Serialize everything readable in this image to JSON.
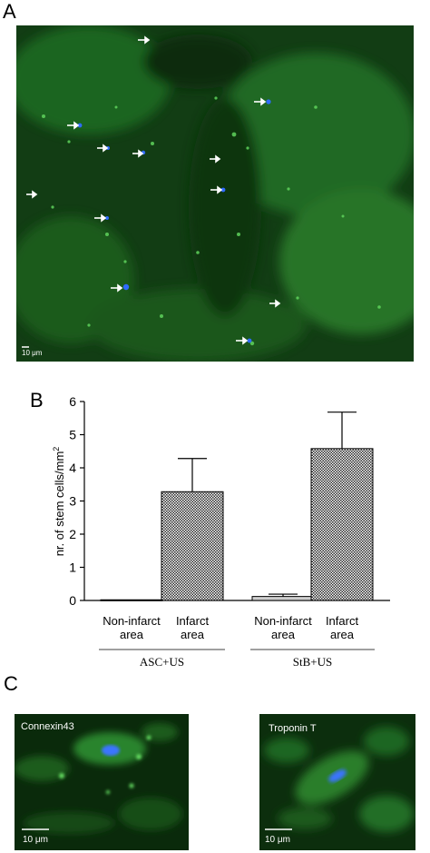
{
  "panels": {
    "a": "A",
    "b": "B",
    "c": "C"
  },
  "panel_a": {
    "scale_label": "10 μm"
  },
  "panel_c": {
    "left": {
      "title": "Connexin43",
      "scale_label": "10 μm"
    },
    "right": {
      "title": "Troponin T",
      "scale_label": "10 μm"
    }
  },
  "colors": {
    "fluor_green": "#1f8a1f",
    "nucleus_blue": "#2f6bff",
    "bar_fill": "#cfcfcf"
  },
  "chart_data": {
    "type": "bar",
    "ylabel": "nr. of stem cells/mm",
    "ylabel_superscript": "2",
    "ylim": [
      0,
      6
    ],
    "yticks": [
      0,
      1,
      2,
      3,
      4,
      5,
      6
    ],
    "groups": [
      {
        "name": "ASC+US",
        "bars": [
          {
            "label_line1": "Non-infarct",
            "label_line2": "area",
            "value": 0.02,
            "error": 0,
            "pattern": "solid"
          },
          {
            "label_line1": "Infarct",
            "label_line2": "area",
            "value": 3.28,
            "error": 1.0,
            "pattern": "checker"
          }
        ]
      },
      {
        "name": "StB+US",
        "bars": [
          {
            "label_line1": "Non-infarct",
            "label_line2": "area",
            "value": 0.12,
            "error": 0.07,
            "pattern": "solid"
          },
          {
            "label_line1": "Infarct",
            "label_line2": "area",
            "value": 4.58,
            "error": 1.1,
            "pattern": "checker"
          }
        ]
      }
    ]
  }
}
